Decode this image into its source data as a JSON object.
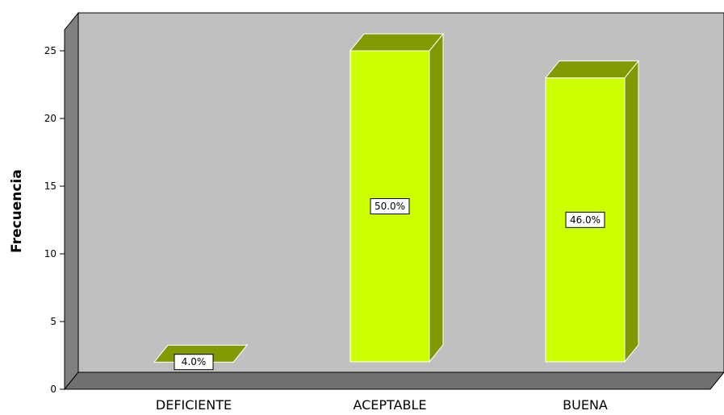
{
  "chart_data": {
    "type": "bar",
    "ylabel": "Frecuencia",
    "xlabel": "",
    "title": "",
    "categories": [
      "DEFICIENTE",
      "ACEPTABLE",
      "BUENA"
    ],
    "values": [
      2,
      25,
      23
    ],
    "data_labels": [
      "4.0%",
      "50.0%",
      "46.0%"
    ],
    "ylim": [
      0,
      25
    ],
    "yticks": [
      "0",
      "5",
      "10",
      "15",
      "20",
      "25"
    ],
    "grid": false,
    "legend": "none",
    "style": "3d"
  },
  "colors": {
    "bar_front": "#ccff00",
    "bar_side": "#7f9a00",
    "bar_top": "#809a00",
    "back_wall": "#c0c0c0",
    "side_wall": "#808080",
    "floor": "#707070",
    "label_box": "#ffffff"
  }
}
